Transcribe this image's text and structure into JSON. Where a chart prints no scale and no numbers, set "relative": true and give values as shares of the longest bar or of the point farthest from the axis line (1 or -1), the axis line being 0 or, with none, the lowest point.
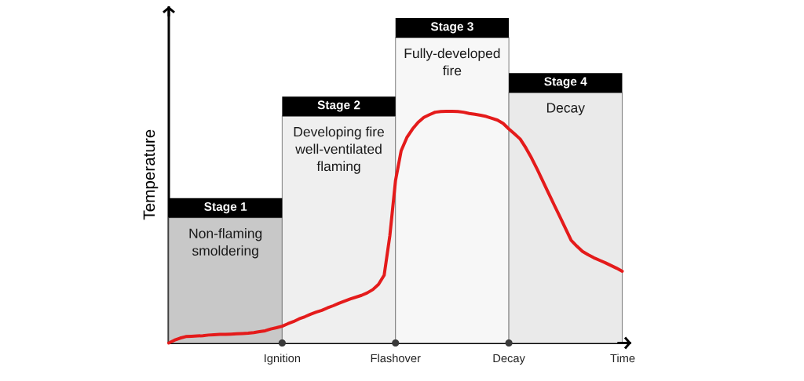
{
  "chart_data": {
    "type": "line",
    "xlabel": "Time",
    "ylabel": "Temperature",
    "relative": true,
    "categories": [
      null,
      null,
      null,
      null,
      null,
      null,
      null,
      null,
      null,
      null,
      null,
      null,
      null,
      null,
      null,
      null,
      null,
      null,
      null,
      null,
      "Ignition",
      null,
      null,
      null,
      null,
      null,
      null,
      null,
      null,
      null,
      null,
      null,
      null,
      null,
      null,
      null,
      null,
      null,
      null,
      null,
      "Flashover",
      null,
      null,
      null,
      null,
      null,
      null,
      null,
      null,
      null,
      null,
      null,
      null,
      null,
      null,
      null,
      null,
      null,
      null,
      null,
      "Decay",
      null,
      null,
      null,
      null,
      null,
      null,
      null,
      null,
      null,
      null,
      null,
      null,
      null,
      null,
      null,
      null,
      null,
      null,
      null,
      null
    ],
    "series": [
      {
        "type": "area",
        "color": "#c8c8c8",
        "values": [
          0.41,
          0.41,
          0.41,
          0.41,
          0.41,
          0.41,
          0.41,
          0.41,
          0.41,
          0.41,
          0.41,
          0.41,
          0.41,
          0.41,
          0.41,
          0.41,
          0.41,
          0.41,
          0.41,
          0.41,
          0.41,
          null,
          null,
          null,
          null,
          null,
          null,
          null,
          null,
          null,
          null,
          null,
          null,
          null,
          null,
          null,
          null,
          null,
          null,
          null,
          null,
          null,
          null,
          null,
          null,
          null,
          null,
          null,
          null,
          null,
          null,
          null,
          null,
          null,
          null,
          null,
          null,
          null,
          null,
          null,
          null,
          null,
          null,
          null,
          null,
          null,
          null,
          null,
          null,
          null,
          null,
          null,
          null,
          null,
          null,
          null,
          null,
          null,
          null,
          null,
          null
        ]
      },
      {
        "type": "area",
        "color": "#efefef",
        "values": [
          null,
          null,
          null,
          null,
          null,
          null,
          null,
          null,
          null,
          null,
          null,
          null,
          null,
          null,
          null,
          null,
          null,
          null,
          null,
          null,
          0.743,
          0.743,
          0.743,
          0.743,
          0.743,
          0.743,
          0.743,
          0.743,
          0.743,
          0.743,
          0.743,
          0.743,
          0.743,
          0.743,
          0.743,
          0.743,
          0.743,
          0.743,
          0.743,
          0.743,
          0.743,
          null,
          null,
          null,
          null,
          null,
          null,
          null,
          null,
          null,
          null,
          null,
          null,
          null,
          null,
          null,
          null,
          null,
          null,
          null,
          null,
          null,
          null,
          null,
          null,
          null,
          null,
          null,
          null,
          null,
          null,
          null,
          null,
          null,
          null,
          null,
          null,
          null,
          null,
          null,
          null
        ]
      },
      {
        "type": "area",
        "color": "#f7f7f7",
        "values": [
          null,
          null,
          null,
          null,
          null,
          null,
          null,
          null,
          null,
          null,
          null,
          null,
          null,
          null,
          null,
          null,
          null,
          null,
          null,
          null,
          null,
          null,
          null,
          null,
          null,
          null,
          null,
          null,
          null,
          null,
          null,
          null,
          null,
          null,
          null,
          null,
          null,
          null,
          null,
          null,
          1,
          1,
          1,
          1,
          1,
          1,
          1,
          1,
          1,
          1,
          1,
          1,
          1,
          1,
          1,
          1,
          1,
          1,
          1,
          1,
          1,
          null,
          null,
          null,
          null,
          null,
          null,
          null,
          null,
          null,
          null,
          null,
          null,
          null,
          null,
          null,
          null,
          null,
          null,
          null,
          null
        ]
      },
      {
        "type": "area",
        "color": "#eaeaea",
        "values": [
          null,
          null,
          null,
          null,
          null,
          null,
          null,
          null,
          null,
          null,
          null,
          null,
          null,
          null,
          null,
          null,
          null,
          null,
          null,
          null,
          null,
          null,
          null,
          null,
          null,
          null,
          null,
          null,
          null,
          null,
          null,
          null,
          null,
          null,
          null,
          null,
          null,
          null,
          null,
          null,
          null,
          null,
          null,
          null,
          null,
          null,
          null,
          null,
          null,
          null,
          null,
          null,
          null,
          null,
          null,
          null,
          null,
          null,
          null,
          null,
          0.82,
          0.82,
          0.82,
          0.82,
          0.82,
          0.82,
          0.82,
          0.82,
          0.82,
          0.82,
          0.82,
          0.82,
          0.82,
          0.82,
          0.82,
          0.82,
          0.82,
          0.82,
          0.82,
          0.82,
          0.82
        ]
      },
      {
        "color": "#e41b1b",
        "values": [
          0,
          0.009,
          0.016,
          0.021,
          0.022,
          0.023,
          0.024,
          0.026,
          0.027,
          0.028,
          0.028,
          0.029,
          0.03,
          0.031,
          0.032,
          0.034,
          0.037,
          0.04,
          0.046,
          0.05,
          0.055,
          0.063,
          0.07,
          0.079,
          0.086,
          0.094,
          0.101,
          0.107,
          0.115,
          0.122,
          0.13,
          0.137,
          0.144,
          0.15,
          0.156,
          0.164,
          0.175,
          0.192,
          0.222,
          0.351,
          0.532,
          0.63,
          0.673,
          0.701,
          0.723,
          0.739,
          0.748,
          0.756,
          0.758,
          0.759,
          0.759,
          0.758,
          0.756,
          0.752,
          0.749,
          0.746,
          0.742,
          0.736,
          0.73,
          0.719,
          0.701,
          0.685,
          0.668,
          0.639,
          0.606,
          0.569,
          0.53,
          0.491,
          0.452,
          0.414,
          0.375,
          0.336,
          0.317,
          0.3,
          0.289,
          0.279,
          0.271,
          0.263,
          0.254,
          0.245,
          0.235
        ]
      }
    ],
    "annotations": [
      {
        "text": "Stage 1",
        "y": 0.41
      },
      {
        "text": "Non-flaming smoldering",
        "y": 0.41
      },
      {
        "text": "Stage 2",
        "y": 0.743
      },
      {
        "text": "Developing fire well-ventilated flaming",
        "y": 0.743
      },
      {
        "text": "Stage 3",
        "y": 1
      },
      {
        "text": "Fully-developed fire",
        "y": 1
      },
      {
        "text": "Stage 4",
        "y": 0.82
      },
      {
        "text": "Decay",
        "y": 0.82
      }
    ]
  }
}
